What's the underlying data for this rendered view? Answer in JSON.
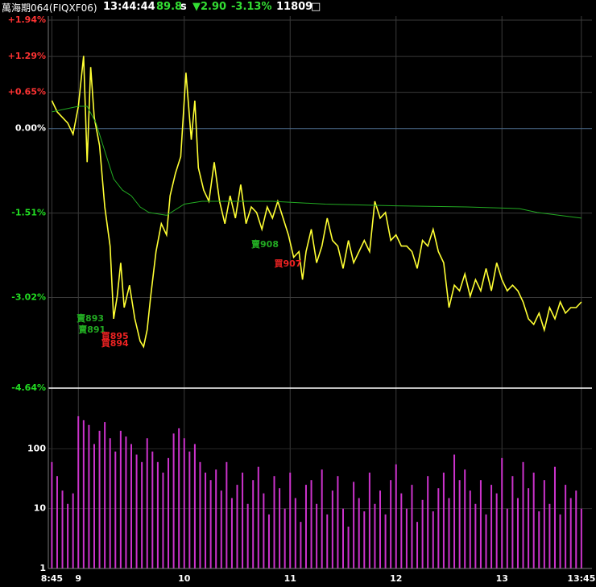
{
  "header": {
    "symbol": "萬海期064(FIQXF06)",
    "time": "13:44:44",
    "value": "89.8",
    "unit": "s",
    "change": "▼2.90",
    "change_pct": "-3.13%",
    "volume": "11809",
    "flag": "□"
  },
  "chart_data": [
    {
      "type": "line",
      "up_color": "#ff3333",
      "down_color": "#22dd22",
      "zero_color": "#ffffff",
      "xlim": [
        523,
        831
      ],
      "ylim": [
        -4.64,
        1.94
      ],
      "yticks": [
        {
          "value": 1.94,
          "label": "+1.94%"
        },
        {
          "value": 1.29,
          "label": "+1.29%"
        },
        {
          "value": 0.65,
          "label": "+0.65%"
        },
        {
          "value": 0,
          "label": "0.00%"
        },
        {
          "value": -1.51,
          "label": "-1.51%"
        },
        {
          "value": -3.02,
          "label": "-3.02%"
        },
        {
          "value": -4.64,
          "label": "-4.64%"
        }
      ],
      "grid": true,
      "series": [
        {
          "color": "#ffff33",
          "x": [
            525,
            528,
            531,
            534,
            537,
            540,
            543,
            545,
            547,
            549,
            552,
            555,
            558,
            560,
            562,
            564,
            566,
            569,
            572,
            575,
            577,
            579,
            581,
            584,
            587,
            590,
            592,
            595,
            598,
            601,
            604,
            606,
            608,
            611,
            614,
            617,
            620,
            623,
            626,
            629,
            632,
            635,
            638,
            641,
            644,
            647,
            650,
            653,
            656,
            659,
            662,
            665,
            667,
            669,
            672,
            675,
            678,
            681,
            684,
            687,
            690,
            693,
            696,
            699,
            702,
            705,
            708,
            711,
            714,
            717,
            720,
            723,
            726,
            729,
            732,
            735,
            738,
            741,
            744,
            747,
            750,
            753,
            756,
            759,
            762,
            765,
            768,
            771,
            774,
            777,
            780,
            783,
            786,
            789,
            792,
            795,
            798,
            801,
            804,
            807,
            810,
            813,
            816,
            819,
            822,
            825
          ],
          "values": [
            0.5,
            0.3,
            0.2,
            0.1,
            -0.1,
            0.4,
            1.3,
            -0.6,
            1.1,
            0.2,
            -0.3,
            -1.4,
            -2.1,
            -3.4,
            -3.0,
            -2.4,
            -3.2,
            -2.8,
            -3.4,
            -3.8,
            -3.9,
            -3.6,
            -3.0,
            -2.2,
            -1.7,
            -1.9,
            -1.2,
            -0.8,
            -0.5,
            1.0,
            -0.2,
            0.5,
            -0.7,
            -1.1,
            -1.3,
            -0.6,
            -1.3,
            -1.7,
            -1.2,
            -1.6,
            -1.0,
            -1.7,
            -1.4,
            -1.5,
            -1.8,
            -1.4,
            -1.6,
            -1.3,
            -1.6,
            -1.9,
            -2.3,
            -2.2,
            -2.7,
            -2.2,
            -1.8,
            -2.4,
            -2.1,
            -1.6,
            -2.0,
            -2.1,
            -2.5,
            -2.0,
            -2.4,
            -2.2,
            -2.0,
            -2.2,
            -1.3,
            -1.6,
            -1.5,
            -2.0,
            -1.9,
            -2.1,
            -2.1,
            -2.2,
            -2.5,
            -2.0,
            -2.1,
            -1.8,
            -2.2,
            -2.4,
            -3.2,
            -2.8,
            -2.9,
            -2.6,
            -3.0,
            -2.7,
            -2.9,
            -2.5,
            -2.9,
            -2.4,
            -2.7,
            -2.9,
            -2.8,
            -2.9,
            -3.1,
            -3.4,
            -3.5,
            -3.3,
            -3.6,
            -3.2,
            -3.4,
            -3.1,
            -3.3,
            -3.2,
            -3.2,
            -3.1
          ]
        },
        {
          "color": "#22aa22",
          "x": [
            525,
            540,
            545,
            550,
            555,
            560,
            565,
            570,
            575,
            580,
            590,
            600,
            610,
            630,
            650,
            680,
            720,
            760,
            790,
            800,
            825
          ],
          "values": [
            0.3,
            0.4,
            0.4,
            0.1,
            -0.4,
            -0.9,
            -1.1,
            -1.2,
            -1.4,
            -1.5,
            -1.55,
            -1.35,
            -1.3,
            -1.3,
            -1.3,
            -1.35,
            -1.38,
            -1.4,
            -1.43,
            -1.5,
            -1.6
          ]
        }
      ],
      "annotations": [
        {
          "text": "賣893",
          "x": 539,
          "y": -3.4,
          "color": "#22aa22"
        },
        {
          "text": "賣891",
          "x": 540,
          "y": -3.6,
          "color": "#22aa22"
        },
        {
          "text": "買895",
          "x": 553,
          "y": -3.72,
          "color": "#ee2222"
        },
        {
          "text": "買894",
          "x": 553,
          "y": -3.85,
          "color": "#ee2222"
        },
        {
          "text": "賣908",
          "x": 638,
          "y": -2.08,
          "color": "#22aa22"
        },
        {
          "text": "買907",
          "x": 651,
          "y": -2.42,
          "color": "#ee2222"
        }
      ]
    },
    {
      "type": "bar",
      "color": "#cc33cc",
      "log_scale": true,
      "xlim": [
        523,
        831
      ],
      "ylim": [
        1,
        1000
      ],
      "yticks": [
        1,
        10,
        100
      ],
      "xticks": [
        {
          "value": 525,
          "label": "8:45"
        },
        {
          "value": 540,
          "label": "9"
        },
        {
          "value": 600,
          "label": "10"
        },
        {
          "value": 660,
          "label": "11"
        },
        {
          "value": 720,
          "label": "12"
        },
        {
          "value": 780,
          "label": "13"
        },
        {
          "value": 825,
          "label": "13:45"
        }
      ],
      "x": [
        525,
        528,
        531,
        534,
        537,
        540,
        543,
        546,
        549,
        552,
        555,
        558,
        561,
        564,
        567,
        570,
        573,
        576,
        579,
        582,
        585,
        588,
        591,
        594,
        597,
        600,
        603,
        606,
        609,
        612,
        615,
        618,
        621,
        624,
        627,
        630,
        633,
        636,
        639,
        642,
        645,
        648,
        651,
        654,
        657,
        660,
        663,
        666,
        669,
        672,
        675,
        678,
        681,
        684,
        687,
        690,
        693,
        696,
        699,
        702,
        705,
        708,
        711,
        714,
        717,
        720,
        723,
        726,
        729,
        732,
        735,
        738,
        741,
        744,
        747,
        750,
        753,
        756,
        759,
        762,
        765,
        768,
        771,
        774,
        777,
        780,
        783,
        786,
        789,
        792,
        795,
        798,
        801,
        804,
        807,
        810,
        813,
        816,
        819,
        822,
        825
      ],
      "values": [
        60,
        35,
        20,
        12,
        18,
        350,
        300,
        250,
        120,
        200,
        280,
        150,
        90,
        200,
        160,
        120,
        80,
        60,
        150,
        90,
        60,
        40,
        70,
        180,
        220,
        150,
        90,
        120,
        60,
        40,
        30,
        45,
        20,
        60,
        15,
        25,
        40,
        12,
        30,
        50,
        18,
        8,
        35,
        22,
        10,
        40,
        15,
        6,
        25,
        30,
        12,
        45,
        8,
        20,
        35,
        10,
        5,
        28,
        15,
        9,
        40,
        12,
        20,
        8,
        30,
        55,
        18,
        10,
        25,
        6,
        14,
        35,
        9,
        22,
        40,
        15,
        80,
        30,
        45,
        20,
        12,
        30,
        8,
        25,
        18,
        70,
        10,
        35,
        15,
        60,
        22,
        40,
        9,
        30,
        12,
        50,
        8,
        25,
        15,
        20,
        10
      ]
    }
  ]
}
